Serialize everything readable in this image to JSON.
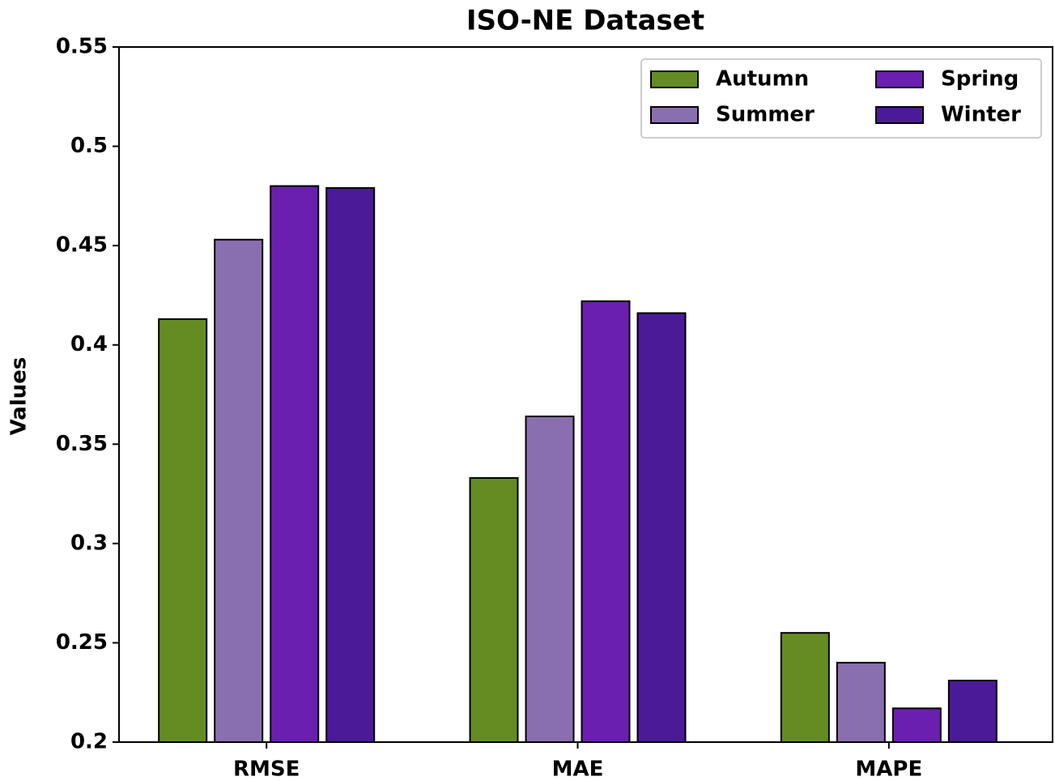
{
  "chart_data": {
    "type": "bar",
    "title": "ISO-NE Dataset",
    "y_label": "Values",
    "categories": [
      "RMSE",
      "MAE",
      "MAPE"
    ],
    "series": [
      {
        "name": "Autumn",
        "color": "#648c23",
        "values": [
          0.413,
          0.333,
          0.255
        ]
      },
      {
        "name": "Summer",
        "color": "#8a6fb0",
        "values": [
          0.453,
          0.364,
          0.24
        ]
      },
      {
        "name": "Spring",
        "color": "#6a1fb0",
        "values": [
          0.48,
          0.422,
          0.217
        ]
      },
      {
        "name": "Winter",
        "color": "#4b1a98",
        "values": [
          0.479,
          0.416,
          0.231
        ]
      }
    ],
    "ylim": [
      0.2,
      0.55
    ],
    "yticks": [
      0.2,
      0.25,
      0.3,
      0.35,
      0.4,
      0.45,
      0.5,
      0.55
    ],
    "legend": "upper right",
    "legend_columns": 2
  }
}
